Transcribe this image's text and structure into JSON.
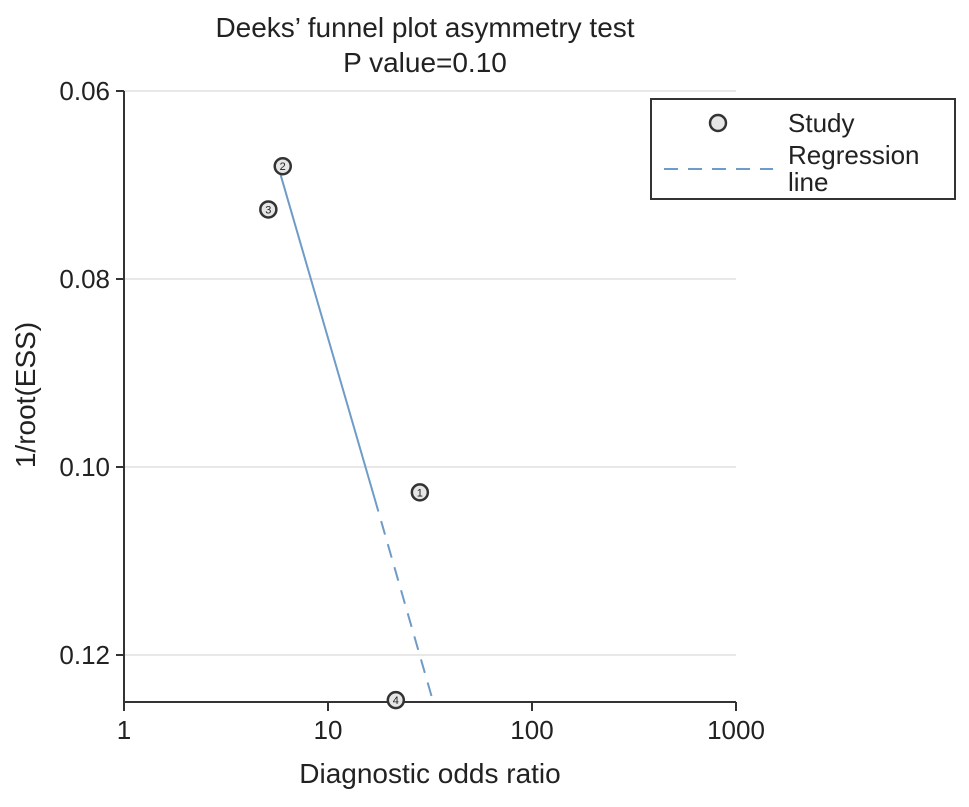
{
  "chart_data": {
    "type": "scatter",
    "title": "Deeks’ funnel plot asymmetry test",
    "subtitle": "P value=0.10",
    "xlabel": "Diagnostic odds ratio",
    "ylabel": "1/root(ESS)",
    "x_scale": "log",
    "xlim": [
      1,
      1000
    ],
    "ylim": [
      0.125,
      0.06
    ],
    "y_reversed": true,
    "xticks": [
      "1",
      "10",
      "100",
      "1000"
    ],
    "xtick_values": [
      1,
      10,
      100,
      1000
    ],
    "yticks": [
      "0.06",
      "0.08",
      "0.10",
      "0.12"
    ],
    "ytick_values": [
      0.06,
      0.08,
      0.1,
      0.12
    ],
    "grid": "horizontal",
    "legend": {
      "placement": "top-right",
      "entries": [
        "Study",
        "Regression",
        "line"
      ]
    },
    "points": [
      {
        "label": "1",
        "x": 28.2,
        "y": 0.1027
      },
      {
        "label": "2",
        "x": 6.0,
        "y": 0.068
      },
      {
        "label": "3",
        "x": 5.1,
        "y": 0.0726
      },
      {
        "label": "4",
        "x": 21.5,
        "y": 0.1248
      }
    ],
    "regression_line": {
      "solid": [
        [
          5.8,
          0.0686
        ],
        [
          16.9,
          0.1033
        ]
      ],
      "dashed": [
        [
          16.9,
          0.1033
        ],
        [
          32.3,
          0.1245
        ]
      ]
    },
    "colors": {
      "line": "#6f9bc7",
      "point_fill": "#e6e6e6",
      "point_stroke": "#333333",
      "grid": "#e8e8e8"
    }
  }
}
